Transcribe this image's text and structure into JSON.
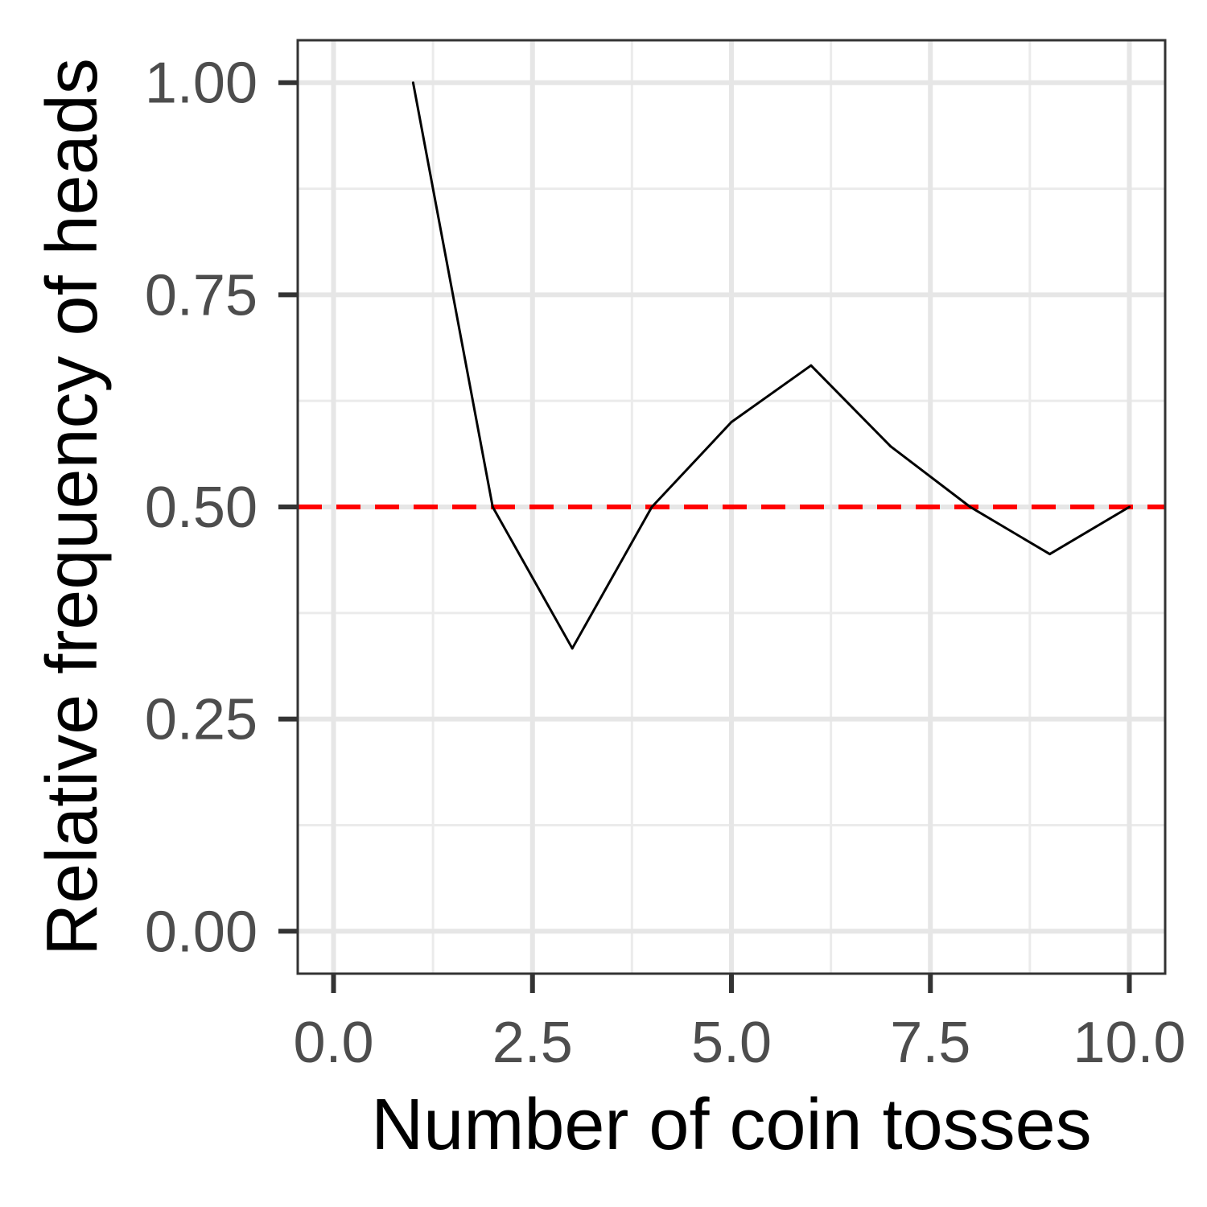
{
  "chart_data": {
    "type": "line",
    "title": "",
    "xlabel": "Number of coin tosses",
    "ylabel": "Relative frequency of heads",
    "xlim": [
      -0.45,
      10.45
    ],
    "ylim": [
      -0.05,
      1.05
    ],
    "x_ticks": [
      0.0,
      2.5,
      5.0,
      7.5,
      10.0
    ],
    "x_tick_labels": [
      "0.0",
      "2.5",
      "5.0",
      "7.5",
      "10.0"
    ],
    "y_ticks": [
      0.0,
      0.25,
      0.5,
      0.75,
      1.0
    ],
    "y_tick_labels": [
      "0.00",
      "0.25",
      "0.50",
      "0.75",
      "1.00"
    ],
    "x_minor": [
      1.25,
      3.75,
      6.25,
      8.75
    ],
    "y_minor": [
      0.125,
      0.375,
      0.625,
      0.875
    ],
    "grid": true,
    "series": [
      {
        "color": "#000000",
        "x": [
          1,
          2,
          3,
          4,
          5,
          6,
          7,
          8,
          9,
          10
        ],
        "y": [
          1.0,
          0.5,
          0.3333,
          0.5,
          0.6,
          0.6667,
          0.5714,
          0.5,
          0.4444,
          0.5
        ]
      }
    ],
    "reference_line": {
      "orientation": "horizontal",
      "y": 0.5,
      "color": "#ff0000",
      "style": "dashed"
    }
  }
}
